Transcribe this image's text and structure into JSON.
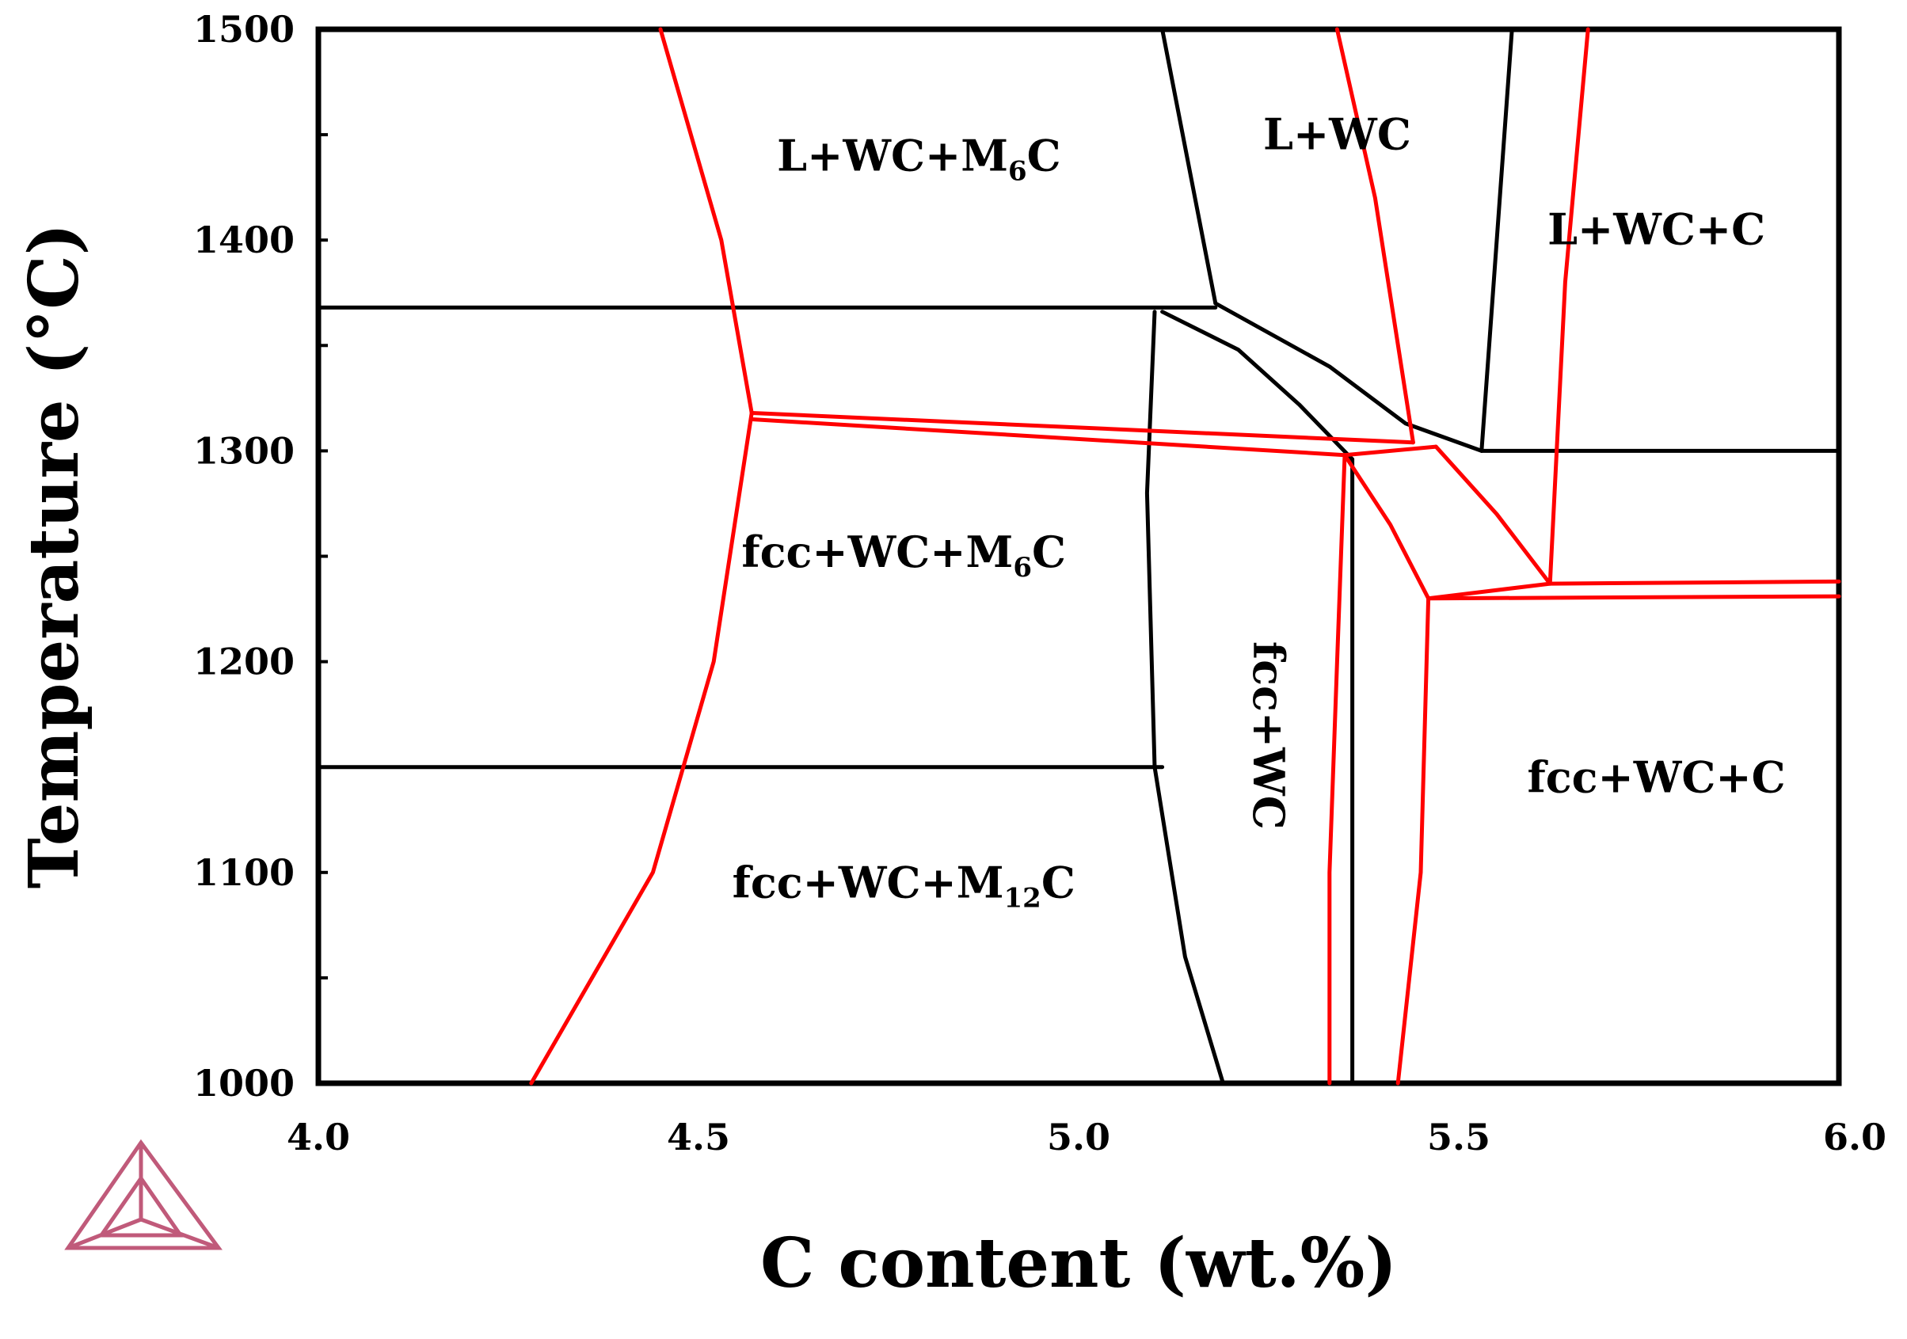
{
  "chart_data": {
    "type": "line",
    "title": "",
    "xlabel": "C content (wt.%)",
    "ylabel": "Temperature (°C)",
    "xlim": [
      4.0,
      6.0
    ],
    "ylim": [
      1000,
      1500
    ],
    "xticks": [
      "4.0",
      "4.5",
      "5.0",
      "5.5",
      "6.0"
    ],
    "yticks": [
      "1000",
      "1100",
      "1200",
      "1300",
      "1400",
      "1500"
    ],
    "grid": false,
    "colors": {
      "black_phase_boundaries": "#000000",
      "red_phase_boundaries": "#ff0000",
      "logo": "#c05a7a"
    },
    "region_labels": [
      {
        "base": "L+WC+M",
        "sub": "6",
        "tail": "C",
        "x": 4.79,
        "y": 1433,
        "rotate": 0
      },
      {
        "base": "L+WC",
        "sub": "",
        "tail": "",
        "x": 5.34,
        "y": 1443,
        "rotate": 0
      },
      {
        "base": "L+WC+C",
        "sub": "",
        "tail": "",
        "x": 5.76,
        "y": 1398,
        "rotate": 0
      },
      {
        "base": "fcc+WC+M",
        "sub": "6",
        "tail": "C",
        "x": 4.77,
        "y": 1245,
        "rotate": 0
      },
      {
        "base": "fcc+WC",
        "sub": "",
        "tail": "",
        "x": 5.23,
        "y": 1165,
        "rotate": 90
      },
      {
        "base": "fcc+WC+C",
        "sub": "",
        "tail": "",
        "x": 5.76,
        "y": 1138,
        "rotate": 0
      },
      {
        "base": "fcc+WC+M",
        "sub": "12",
        "tail": "C",
        "x": 4.77,
        "y": 1088,
        "rotate": 0
      }
    ],
    "series": [
      {
        "color": "black",
        "points": [
          [
            4.0,
            1368
          ],
          [
            5.18,
            1368
          ]
        ]
      },
      {
        "color": "black",
        "points": [
          [
            5.11,
            1500
          ],
          [
            5.18,
            1370
          ]
        ]
      },
      {
        "color": "black",
        "points": [
          [
            5.18,
            1370
          ],
          [
            5.33,
            1340
          ],
          [
            5.43,
            1313
          ],
          [
            5.53,
            1300
          ]
        ]
      },
      {
        "color": "black",
        "points": [
          [
            5.11,
            1366
          ],
          [
            5.21,
            1348
          ],
          [
            5.29,
            1322
          ],
          [
            5.36,
            1296
          ]
        ]
      },
      {
        "color": "black",
        "points": [
          [
            5.1,
            1366
          ],
          [
            5.09,
            1280
          ],
          [
            5.1,
            1150
          ],
          [
            5.14,
            1060
          ],
          [
            5.19,
            1000
          ]
        ]
      },
      {
        "color": "black",
        "points": [
          [
            4.0,
            1150
          ],
          [
            5.11,
            1150
          ]
        ]
      },
      {
        "color": "black",
        "points": [
          [
            5.36,
            1296
          ],
          [
            5.36,
            1000
          ]
        ]
      },
      {
        "color": "black",
        "points": [
          [
            5.57,
            1500
          ],
          [
            5.53,
            1300
          ]
        ]
      },
      {
        "color": "black",
        "points": [
          [
            5.53,
            1300
          ],
          [
            6.0,
            1300
          ]
        ]
      },
      {
        "color": "red",
        "points": [
          [
            4.45,
            1500
          ],
          [
            4.53,
            1400
          ],
          [
            4.57,
            1318
          ],
          [
            4.52,
            1200
          ],
          [
            4.44,
            1100
          ],
          [
            4.28,
            1000
          ]
        ]
      },
      {
        "color": "red",
        "points": [
          [
            4.57,
            1318
          ],
          [
            5.44,
            1304
          ]
        ]
      },
      {
        "color": "red",
        "points": [
          [
            4.57,
            1315
          ],
          [
            5.35,
            1298
          ]
        ]
      },
      {
        "color": "red",
        "points": [
          [
            5.35,
            1298
          ],
          [
            5.47,
            1302
          ]
        ]
      },
      {
        "color": "red",
        "points": [
          [
            5.35,
            1298
          ],
          [
            5.34,
            1200
          ],
          [
            5.33,
            1100
          ],
          [
            5.33,
            1000
          ]
        ]
      },
      {
        "color": "red",
        "points": [
          [
            5.35,
            1298
          ],
          [
            5.41,
            1265
          ],
          [
            5.46,
            1230
          ]
        ]
      },
      {
        "color": "red",
        "points": [
          [
            5.46,
            1230
          ],
          [
            5.45,
            1100
          ],
          [
            5.42,
            1000
          ]
        ]
      },
      {
        "color": "red",
        "points": [
          [
            5.47,
            1302
          ],
          [
            5.55,
            1270
          ],
          [
            5.62,
            1237
          ]
        ]
      },
      {
        "color": "red",
        "points": [
          [
            5.34,
            1500
          ],
          [
            5.39,
            1420
          ],
          [
            5.44,
            1304
          ]
        ]
      },
      {
        "color": "red",
        "points": [
          [
            5.67,
            1500
          ],
          [
            5.64,
            1380
          ],
          [
            5.62,
            1237
          ]
        ]
      },
      {
        "color": "red",
        "points": [
          [
            5.46,
            1230
          ],
          [
            5.62,
            1237
          ],
          [
            6.0,
            1238
          ]
        ]
      },
      {
        "color": "red",
        "points": [
          [
            5.46,
            1230
          ],
          [
            6.0,
            1231
          ]
        ]
      }
    ]
  }
}
